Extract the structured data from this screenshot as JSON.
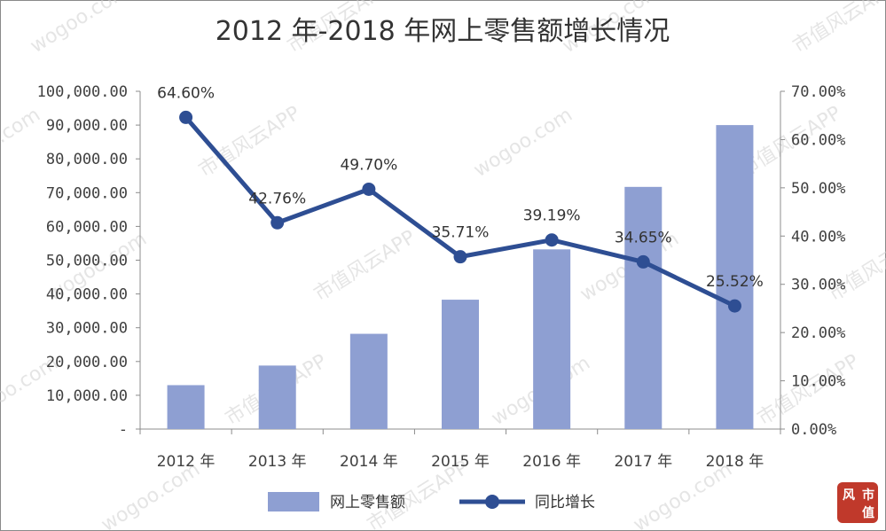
{
  "chart_data": {
    "type": "bar+line",
    "title": "2012 年-2018 年网上零售额增长情况",
    "categories": [
      "2012 年",
      "2013 年",
      "2014 年",
      "2015 年",
      "2016 年",
      "2017 年",
      "2018 年"
    ],
    "series": [
      {
        "name": "网上零售额",
        "type": "bar",
        "axis": "left",
        "values": [
          13000,
          18800,
          28200,
          38300,
          53200,
          71700,
          90000
        ]
      },
      {
        "name": "同比增长",
        "type": "line",
        "axis": "right",
        "values": [
          64.6,
          42.76,
          49.7,
          35.71,
          39.19,
          34.65,
          25.52
        ],
        "labels": [
          "64.60%",
          "42.76%",
          "49.70%",
          "35.71%",
          "39.19%",
          "34.65%",
          "25.52%"
        ]
      }
    ],
    "left_axis": {
      "ylim": [
        0,
        100000
      ],
      "ticks": [
        "100,000.00",
        "90,000.00",
        "80,000.00",
        "70,000.00",
        "60,000.00",
        "50,000.00",
        "40,000.00",
        "30,000.00",
        "20,000.00",
        "10,000.00",
        "-"
      ]
    },
    "right_axis": {
      "ylim": [
        0,
        70
      ],
      "ticks": [
        "70.00%",
        "60.00%",
        "50.00%",
        "40.00%",
        "30.00%",
        "20.00%",
        "10.00%",
        "0.00%"
      ]
    },
    "grid": false,
    "legend_position": "bottom",
    "colors": {
      "bar": "#8e9fd2",
      "line": "#2e4e93",
      "watermark": "#c8c8c8",
      "seal": "#c0392b"
    }
  },
  "watermark": {
    "cn": "市值风云APP",
    "en": "wogoo.com"
  },
  "seal": {
    "line1": "市",
    "line2": "值",
    "line3": "风"
  }
}
